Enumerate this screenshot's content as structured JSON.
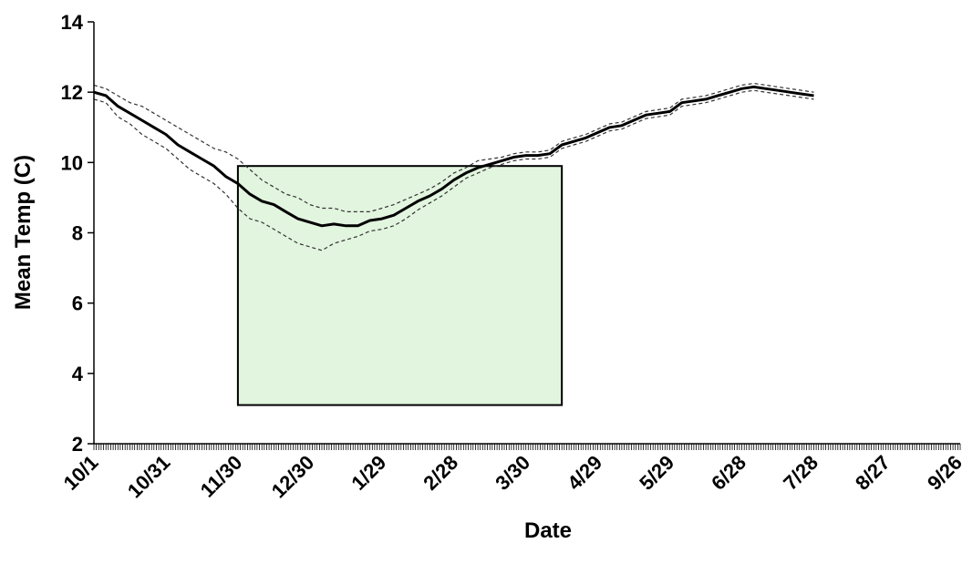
{
  "chart_data": {
    "type": "line",
    "title": "",
    "xlabel": "Date",
    "ylabel": "Mean Temp (C)",
    "x_ticks": [
      "10/1",
      "10/31",
      "11/30",
      "12/30",
      "1/29",
      "2/28",
      "3/30",
      "4/29",
      "5/29",
      "6/28",
      "7/28",
      "8/27",
      "9/26"
    ],
    "x_range_days": [
      0,
      361
    ],
    "ylim": [
      2,
      14
    ],
    "y_ticks": [
      2,
      4,
      6,
      8,
      10,
      12,
      14
    ],
    "grid": false,
    "legend": "none",
    "highlight_box": {
      "x_start": "11/30",
      "x_end": "4/14",
      "y_bottom": 3.1,
      "y_top": 9.9,
      "color": "#e2f5df"
    },
    "series": [
      {
        "style": "solid-bold",
        "color": "#000000",
        "points": [
          [
            0,
            12.0
          ],
          [
            5,
            11.9
          ],
          [
            10,
            11.6
          ],
          [
            15,
            11.4
          ],
          [
            20,
            11.2
          ],
          [
            25,
            11.0
          ],
          [
            30,
            10.8
          ],
          [
            35,
            10.5
          ],
          [
            40,
            10.3
          ],
          [
            45,
            10.1
          ],
          [
            50,
            9.9
          ],
          [
            55,
            9.6
          ],
          [
            60,
            9.4
          ],
          [
            65,
            9.1
          ],
          [
            70,
            8.9
          ],
          [
            75,
            8.8
          ],
          [
            80,
            8.6
          ],
          [
            85,
            8.4
          ],
          [
            90,
            8.3
          ],
          [
            95,
            8.2
          ],
          [
            100,
            8.25
          ],
          [
            105,
            8.2
          ],
          [
            110,
            8.2
          ],
          [
            115,
            8.35
          ],
          [
            120,
            8.4
          ],
          [
            125,
            8.5
          ],
          [
            130,
            8.7
          ],
          [
            135,
            8.9
          ],
          [
            140,
            9.05
          ],
          [
            145,
            9.25
          ],
          [
            150,
            9.5
          ],
          [
            155,
            9.7
          ],
          [
            160,
            9.85
          ],
          [
            165,
            9.95
          ],
          [
            170,
            10.05
          ],
          [
            175,
            10.15
          ],
          [
            180,
            10.2
          ],
          [
            185,
            10.2
          ],
          [
            190,
            10.25
          ],
          [
            195,
            10.5
          ],
          [
            200,
            10.6
          ],
          [
            205,
            10.7
          ],
          [
            210,
            10.85
          ],
          [
            215,
            11.0
          ],
          [
            220,
            11.05
          ],
          [
            225,
            11.2
          ],
          [
            230,
            11.35
          ],
          [
            235,
            11.4
          ],
          [
            240,
            11.45
          ],
          [
            245,
            11.7
          ],
          [
            250,
            11.75
          ],
          [
            255,
            11.8
          ],
          [
            260,
            11.9
          ],
          [
            265,
            12.0
          ],
          [
            270,
            12.1
          ],
          [
            275,
            12.15
          ],
          [
            280,
            12.1
          ],
          [
            285,
            12.05
          ],
          [
            290,
            12.0
          ],
          [
            295,
            11.95
          ],
          [
            300,
            11.9
          ]
        ]
      },
      {
        "style": "dashed-upper",
        "color": "#333333",
        "points": [
          [
            0,
            12.2
          ],
          [
            5,
            12.1
          ],
          [
            10,
            11.9
          ],
          [
            15,
            11.7
          ],
          [
            20,
            11.6
          ],
          [
            25,
            11.4
          ],
          [
            30,
            11.2
          ],
          [
            35,
            11.0
          ],
          [
            40,
            10.8
          ],
          [
            45,
            10.6
          ],
          [
            50,
            10.4
          ],
          [
            55,
            10.3
          ],
          [
            60,
            10.1
          ],
          [
            65,
            9.8
          ],
          [
            70,
            9.5
          ],
          [
            75,
            9.3
          ],
          [
            80,
            9.1
          ],
          [
            85,
            9.0
          ],
          [
            90,
            8.8
          ],
          [
            95,
            8.7
          ],
          [
            100,
            8.7
          ],
          [
            105,
            8.6
          ],
          [
            110,
            8.6
          ],
          [
            115,
            8.6
          ],
          [
            120,
            8.7
          ],
          [
            125,
            8.8
          ],
          [
            130,
            8.95
          ],
          [
            135,
            9.1
          ],
          [
            140,
            9.25
          ],
          [
            145,
            9.45
          ],
          [
            150,
            9.7
          ],
          [
            155,
            9.85
          ],
          [
            160,
            10.05
          ],
          [
            165,
            10.1
          ],
          [
            170,
            10.15
          ],
          [
            175,
            10.25
          ],
          [
            180,
            10.3
          ],
          [
            185,
            10.3
          ],
          [
            190,
            10.35
          ],
          [
            195,
            10.6
          ],
          [
            200,
            10.7
          ],
          [
            205,
            10.8
          ],
          [
            210,
            10.95
          ],
          [
            215,
            11.1
          ],
          [
            220,
            11.15
          ],
          [
            225,
            11.3
          ],
          [
            230,
            11.45
          ],
          [
            235,
            11.5
          ],
          [
            240,
            11.55
          ],
          [
            245,
            11.8
          ],
          [
            250,
            11.85
          ],
          [
            255,
            11.9
          ],
          [
            260,
            12.0
          ],
          [
            265,
            12.1
          ],
          [
            270,
            12.2
          ],
          [
            275,
            12.25
          ],
          [
            280,
            12.2
          ],
          [
            285,
            12.15
          ],
          [
            290,
            12.1
          ],
          [
            295,
            12.05
          ],
          [
            300,
            12.0
          ]
        ]
      },
      {
        "style": "dashed-lower",
        "color": "#333333",
        "points": [
          [
            0,
            11.8
          ],
          [
            5,
            11.7
          ],
          [
            10,
            11.3
          ],
          [
            15,
            11.1
          ],
          [
            20,
            10.8
          ],
          [
            25,
            10.6
          ],
          [
            30,
            10.4
          ],
          [
            35,
            10.1
          ],
          [
            40,
            9.8
          ],
          [
            45,
            9.6
          ],
          [
            50,
            9.4
          ],
          [
            55,
            9.1
          ],
          [
            60,
            8.7
          ],
          [
            65,
            8.4
          ],
          [
            70,
            8.3
          ],
          [
            75,
            8.1
          ],
          [
            80,
            7.9
          ],
          [
            85,
            7.7
          ],
          [
            90,
            7.6
          ],
          [
            95,
            7.5
          ],
          [
            100,
            7.7
          ],
          [
            105,
            7.8
          ],
          [
            110,
            7.9
          ],
          [
            115,
            8.05
          ],
          [
            120,
            8.1
          ],
          [
            125,
            8.2
          ],
          [
            130,
            8.4
          ],
          [
            135,
            8.65
          ],
          [
            140,
            8.85
          ],
          [
            145,
            9.05
          ],
          [
            150,
            9.3
          ],
          [
            155,
            9.55
          ],
          [
            160,
            9.7
          ],
          [
            165,
            9.85
          ],
          [
            170,
            9.95
          ],
          [
            175,
            10.05
          ],
          [
            180,
            10.1
          ],
          [
            185,
            10.1
          ],
          [
            190,
            10.15
          ],
          [
            195,
            10.4
          ],
          [
            200,
            10.5
          ],
          [
            205,
            10.6
          ],
          [
            210,
            10.75
          ],
          [
            215,
            10.9
          ],
          [
            220,
            10.95
          ],
          [
            225,
            11.1
          ],
          [
            230,
            11.25
          ],
          [
            235,
            11.3
          ],
          [
            240,
            11.35
          ],
          [
            245,
            11.6
          ],
          [
            250,
            11.65
          ],
          [
            255,
            11.7
          ],
          [
            260,
            11.8
          ],
          [
            265,
            11.9
          ],
          [
            270,
            12.0
          ],
          [
            275,
            12.05
          ],
          [
            280,
            12.0
          ],
          [
            285,
            11.95
          ],
          [
            290,
            11.9
          ],
          [
            295,
            11.85
          ],
          [
            300,
            11.8
          ]
        ]
      }
    ]
  }
}
